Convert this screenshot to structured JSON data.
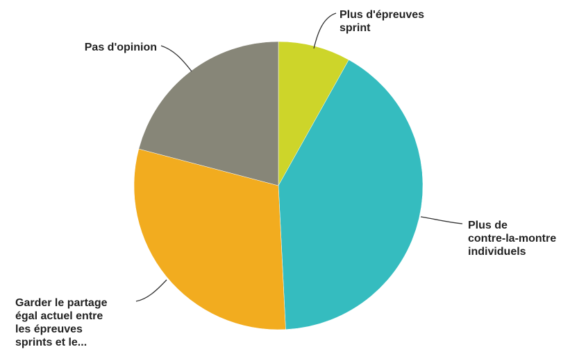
{
  "chart_data": {
    "type": "pie",
    "slices": [
      {
        "label": [
          "Plus d'épreuves",
          "sprint"
        ],
        "value": 8.1,
        "color": "#cdd52a"
      },
      {
        "label": [
          "Plus de",
          "contre-la-montre",
          "individuels"
        ],
        "value": 41.1,
        "color": "#35bcbf"
      },
      {
        "label": [
          "Garder le partage",
          "égal actuel entre",
          "les épreuves",
          "sprints et le..."
        ],
        "value": 29.9,
        "color": "#f2ac1f"
      },
      {
        "label": [
          "Pas d'opinion"
        ],
        "value": 20.9,
        "color": "#878678"
      }
    ],
    "legend": "none"
  }
}
